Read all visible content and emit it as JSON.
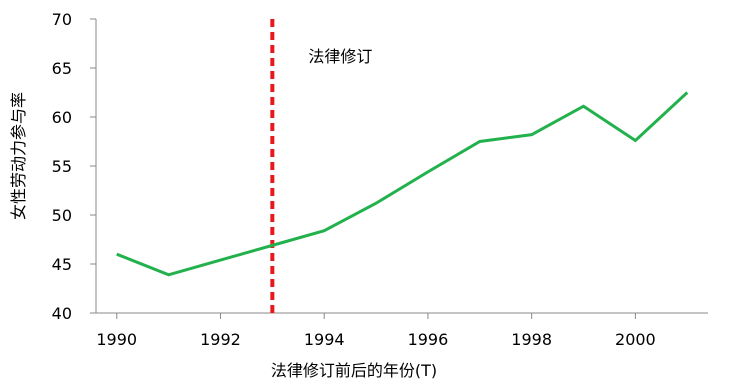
{
  "chart_data": {
    "type": "line",
    "xlabel": "法律修订前后的年份(T)",
    "ylabel": "女性劳动力参与率",
    "xlim": [
      1989.6,
      2001.4
    ],
    "ylim": [
      40,
      70
    ],
    "xticks": [
      1990,
      1992,
      1994,
      1996,
      1998,
      2000
    ],
    "yticks": [
      40,
      45,
      50,
      55,
      60,
      65,
      70
    ],
    "grid": false,
    "series": [
      {
        "color": "#22b14c",
        "x": [
          1990,
          1991,
          1992,
          1993,
          1994,
          1995,
          1996,
          1997,
          1998,
          1999,
          2000,
          2001
        ],
        "y": [
          46.0,
          43.9,
          45.4,
          46.9,
          48.4,
          51.2,
          54.4,
          57.5,
          58.2,
          61.1,
          57.6,
          62.5
        ]
      }
    ],
    "annotations": [
      {
        "type": "vline",
        "x": 1993,
        "color": "#e8191c",
        "style": "dashed",
        "label": "法律修订"
      }
    ]
  }
}
